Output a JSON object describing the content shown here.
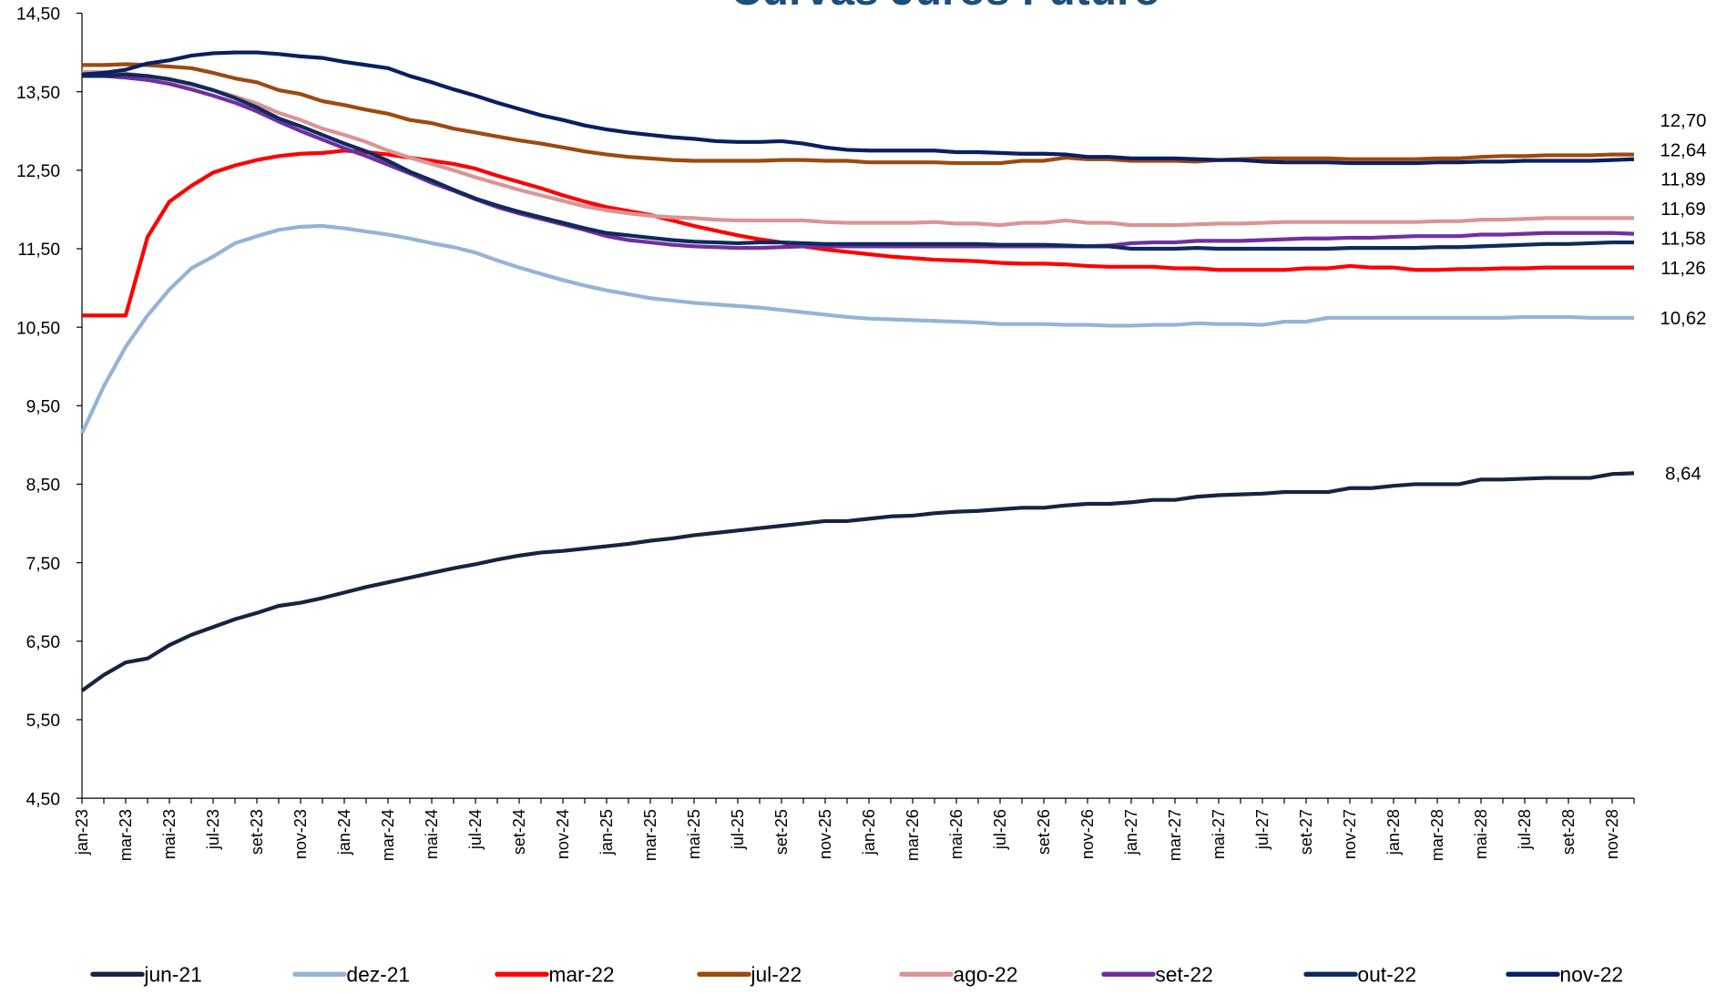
{
  "chart_data": {
    "type": "line",
    "title": "Curvas Juros Futuro",
    "categories": [
      "jan-23",
      null,
      "mar-23",
      null,
      "mai-23",
      null,
      "jul-23",
      null,
      "set-23",
      null,
      "nov-23",
      null,
      "jan-24",
      null,
      "mar-24",
      null,
      "mai-24",
      null,
      "jul-24",
      null,
      "set-24",
      null,
      "nov-24",
      null,
      "jan-25",
      null,
      "mar-25",
      null,
      "mai-25",
      null,
      "jul-25",
      null,
      "set-25",
      null,
      "nov-25",
      null,
      "jan-26",
      null,
      "mar-26",
      null,
      "mai-26",
      null,
      "jul-26",
      null,
      "set-26",
      null,
      "nov-26",
      null,
      "jan-27",
      null,
      "mar-27",
      null,
      "mai-27",
      null,
      "jul-27",
      null,
      "set-27",
      null,
      "nov-27",
      null,
      "jan-28",
      null,
      "mar-28",
      null,
      "mai-28",
      null,
      "jul-28",
      null,
      "set-28",
      null,
      "nov-28",
      null
    ],
    "ylim": [
      4.5,
      14.5
    ],
    "yticks": [
      {
        "value": 4.5,
        "label": "4,50"
      },
      {
        "value": 5.5,
        "label": "5,50"
      },
      {
        "value": 6.5,
        "label": "6,50"
      },
      {
        "value": 7.5,
        "label": "7,50"
      },
      {
        "value": 8.5,
        "label": "8,50"
      },
      {
        "value": 9.5,
        "label": "9,50"
      },
      {
        "value": 10.5,
        "label": "10,50"
      },
      {
        "value": 11.5,
        "label": "11,50"
      },
      {
        "value": 12.5,
        "label": "12,50"
      },
      {
        "value": 13.5,
        "label": "13,50"
      },
      {
        "value": 14.5,
        "label": "14,50"
      }
    ],
    "grid": false,
    "legend": "bottom",
    "series": [
      {
        "name": "jun-21",
        "color": "#17243f",
        "end_label": "8,64",
        "values": [
          5.87,
          6.07,
          6.23,
          6.28,
          6.45,
          6.58,
          6.68,
          6.78,
          6.86,
          6.95,
          6.99,
          7.05,
          7.12,
          7.19,
          7.25,
          7.31,
          7.37,
          7.43,
          7.48,
          7.54,
          7.59,
          7.63,
          7.65,
          7.68,
          7.71,
          7.74,
          7.78,
          7.81,
          7.85,
          7.88,
          7.91,
          7.94,
          7.97,
          8.0,
          8.03,
          8.03,
          8.06,
          8.09,
          8.1,
          8.13,
          8.15,
          8.16,
          8.18,
          8.2,
          8.2,
          8.23,
          8.25,
          8.25,
          8.27,
          8.3,
          8.3,
          8.34,
          8.36,
          8.37,
          8.38,
          8.4,
          8.4,
          8.4,
          8.45,
          8.45,
          8.48,
          8.5,
          8.5,
          8.5,
          8.56,
          8.56,
          8.57,
          8.58,
          8.58,
          8.58,
          8.63,
          8.64
        ]
      },
      {
        "name": "dez-21",
        "color": "#95b3d7",
        "end_label": "10,62",
        "values": [
          9.15,
          9.75,
          10.25,
          10.65,
          10.98,
          11.25,
          11.4,
          11.57,
          11.66,
          11.74,
          11.78,
          11.79,
          11.76,
          11.72,
          11.68,
          11.63,
          11.57,
          11.52,
          11.45,
          11.35,
          11.26,
          11.18,
          11.1,
          11.03,
          10.97,
          10.92,
          10.87,
          10.84,
          10.81,
          10.79,
          10.77,
          10.75,
          10.72,
          10.69,
          10.66,
          10.63,
          10.61,
          10.6,
          10.59,
          10.58,
          10.57,
          10.56,
          10.54,
          10.54,
          10.54,
          10.53,
          10.53,
          10.52,
          10.52,
          10.53,
          10.53,
          10.55,
          10.54,
          10.54,
          10.53,
          10.57,
          10.57,
          10.62,
          10.62,
          10.62,
          10.62,
          10.62,
          10.62,
          10.62,
          10.62,
          10.62,
          10.63,
          10.63,
          10.63,
          10.62,
          10.62,
          10.62
        ]
      },
      {
        "name": "mar-22",
        "color": "#ff0000",
        "end_label": "11,26",
        "values": [
          10.65,
          10.65,
          10.65,
          11.65,
          12.1,
          12.3,
          12.47,
          12.56,
          12.63,
          12.68,
          12.71,
          12.72,
          12.75,
          12.73,
          12.7,
          12.66,
          12.62,
          12.58,
          12.52,
          12.43,
          12.35,
          12.27,
          12.18,
          12.1,
          12.03,
          11.98,
          11.93,
          11.86,
          11.79,
          11.73,
          11.67,
          11.62,
          11.58,
          11.53,
          11.49,
          11.46,
          11.43,
          11.4,
          11.38,
          11.36,
          11.35,
          11.34,
          11.32,
          11.31,
          11.31,
          11.3,
          11.28,
          11.27,
          11.27,
          11.27,
          11.25,
          11.25,
          11.23,
          11.23,
          11.23,
          11.23,
          11.25,
          11.25,
          11.28,
          11.26,
          11.26,
          11.23,
          11.23,
          11.24,
          11.24,
          11.25,
          11.25,
          11.26,
          11.26,
          11.26,
          11.26,
          11.26
        ]
      },
      {
        "name": "jul-22",
        "color": "#9c4a0f",
        "end_label": "12,70",
        "values": [
          13.84,
          13.84,
          13.85,
          13.84,
          13.82,
          13.8,
          13.74,
          13.67,
          13.62,
          13.52,
          13.47,
          13.38,
          13.33,
          13.27,
          13.22,
          13.14,
          13.1,
          13.03,
          12.98,
          12.93,
          12.88,
          12.84,
          12.79,
          12.74,
          12.7,
          12.67,
          12.65,
          12.63,
          12.62,
          12.62,
          12.62,
          12.62,
          12.63,
          12.63,
          12.62,
          12.62,
          12.6,
          12.6,
          12.6,
          12.6,
          12.59,
          12.59,
          12.59,
          12.62,
          12.62,
          12.66,
          12.64,
          12.64,
          12.62,
          12.62,
          12.62,
          12.61,
          12.63,
          12.64,
          12.65,
          12.65,
          12.65,
          12.65,
          12.64,
          12.64,
          12.64,
          12.64,
          12.65,
          12.65,
          12.67,
          12.68,
          12.68,
          12.69,
          12.69,
          12.69,
          12.7,
          12.7
        ]
      },
      {
        "name": "ago-22",
        "color": "#d99594",
        "end_label": "11,89",
        "values": [
          13.75,
          13.75,
          13.73,
          13.7,
          13.65,
          13.59,
          13.52,
          13.44,
          13.35,
          13.23,
          13.14,
          13.03,
          12.95,
          12.86,
          12.75,
          12.66,
          12.58,
          12.5,
          12.41,
          12.33,
          12.25,
          12.18,
          12.11,
          12.04,
          11.99,
          11.95,
          11.92,
          11.9,
          11.89,
          11.87,
          11.86,
          11.86,
          11.86,
          11.86,
          11.84,
          11.83,
          11.83,
          11.83,
          11.83,
          11.84,
          11.82,
          11.82,
          11.8,
          11.83,
          11.83,
          11.86,
          11.83,
          11.83,
          11.8,
          11.8,
          11.8,
          11.81,
          11.82,
          11.82,
          11.83,
          11.84,
          11.84,
          11.84,
          11.84,
          11.84,
          11.84,
          11.84,
          11.85,
          11.85,
          11.87,
          11.87,
          11.88,
          11.89,
          11.89,
          11.89,
          11.89,
          11.89
        ]
      },
      {
        "name": "set-22",
        "color": "#7030a0",
        "end_label": "11,69",
        "values": [
          13.7,
          13.7,
          13.68,
          13.65,
          13.6,
          13.53,
          13.45,
          13.36,
          13.25,
          13.12,
          13.0,
          12.89,
          12.78,
          12.68,
          12.57,
          12.46,
          12.34,
          12.24,
          12.13,
          12.03,
          11.95,
          11.88,
          11.81,
          11.74,
          11.66,
          11.61,
          11.58,
          11.55,
          11.53,
          11.52,
          11.51,
          11.51,
          11.52,
          11.53,
          11.53,
          11.53,
          11.53,
          11.53,
          11.53,
          11.53,
          11.53,
          11.53,
          11.53,
          11.53,
          11.53,
          11.53,
          11.53,
          11.54,
          11.57,
          11.58,
          11.58,
          11.6,
          11.6,
          11.6,
          11.61,
          11.62,
          11.63,
          11.63,
          11.64,
          11.64,
          11.65,
          11.66,
          11.66,
          11.66,
          11.68,
          11.68,
          11.69,
          11.7,
          11.7,
          11.7,
          11.7,
          11.69
        ]
      },
      {
        "name": "out-22",
        "color": "#0f2a5c",
        "end_label": "11,58",
        "values": [
          13.7,
          13.7,
          13.72,
          13.7,
          13.66,
          13.6,
          13.52,
          13.42,
          13.3,
          13.16,
          13.06,
          12.95,
          12.84,
          12.74,
          12.62,
          12.48,
          12.37,
          12.25,
          12.14,
          12.05,
          11.97,
          11.9,
          11.83,
          11.76,
          11.7,
          11.67,
          11.64,
          11.61,
          11.59,
          11.58,
          11.57,
          11.58,
          11.58,
          11.57,
          11.56,
          11.56,
          11.56,
          11.56,
          11.56,
          11.56,
          11.56,
          11.56,
          11.55,
          11.55,
          11.55,
          11.54,
          11.53,
          11.53,
          11.5,
          11.5,
          11.5,
          11.51,
          11.5,
          11.5,
          11.5,
          11.5,
          11.5,
          11.5,
          11.51,
          11.51,
          11.51,
          11.51,
          11.52,
          11.52,
          11.53,
          11.54,
          11.55,
          11.56,
          11.56,
          11.57,
          11.58,
          11.58
        ]
      },
      {
        "name": "nov-22",
        "color": "#0a1f63",
        "end_label": "12,64",
        "values": [
          13.72,
          13.74,
          13.78,
          13.86,
          13.9,
          13.96,
          13.99,
          14.0,
          14.0,
          13.98,
          13.95,
          13.93,
          13.88,
          13.84,
          13.8,
          13.7,
          13.62,
          13.53,
          13.45,
          13.36,
          13.28,
          13.2,
          13.14,
          13.07,
          13.02,
          12.98,
          12.95,
          12.92,
          12.9,
          12.87,
          12.86,
          12.86,
          12.87,
          12.84,
          12.79,
          12.76,
          12.75,
          12.75,
          12.75,
          12.75,
          12.73,
          12.73,
          12.72,
          12.71,
          12.71,
          12.7,
          12.67,
          12.67,
          12.65,
          12.65,
          12.65,
          12.64,
          12.63,
          12.63,
          12.61,
          12.6,
          12.6,
          12.6,
          12.59,
          12.59,
          12.59,
          12.59,
          12.6,
          12.6,
          12.61,
          12.61,
          12.62,
          12.62,
          12.62,
          12.62,
          12.63,
          12.64
        ]
      }
    ]
  }
}
